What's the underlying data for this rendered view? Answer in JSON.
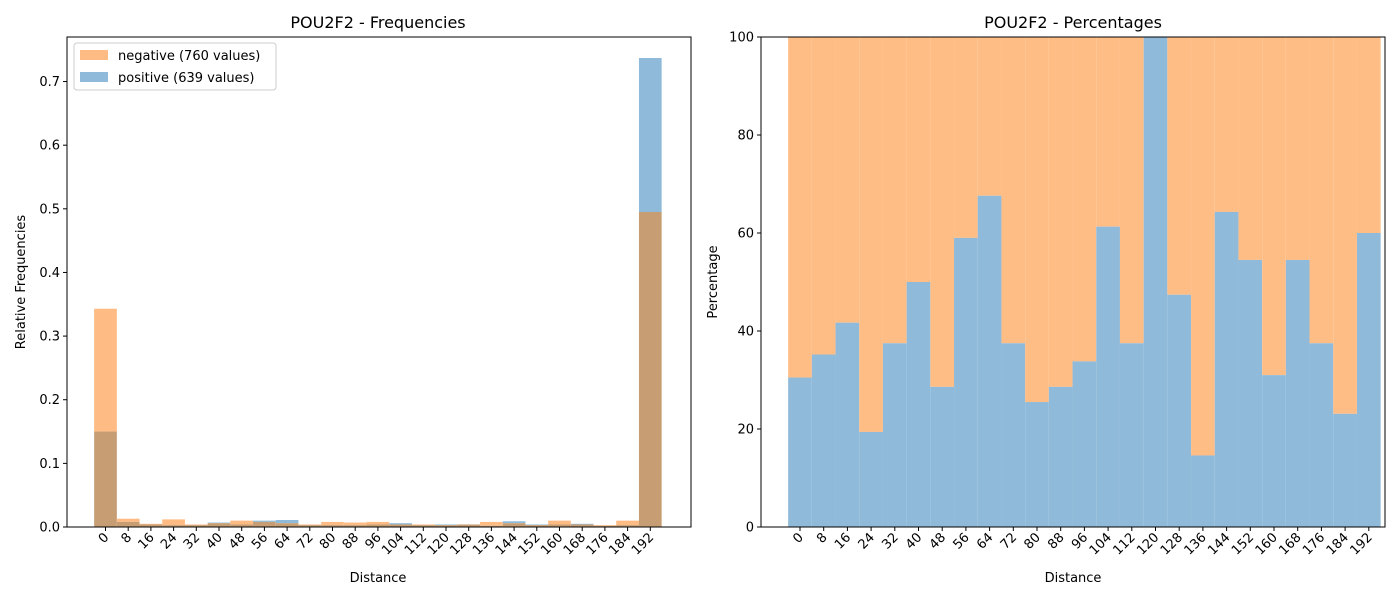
{
  "chart_data": [
    {
      "type": "bar",
      "title": "POU2F2 - Frequencies",
      "xlabel": "Distance",
      "ylabel": "Relative Frequencies",
      "ylim": [
        0,
        0.77
      ],
      "yticks": [
        "0.0",
        "0.1",
        "0.2",
        "0.3",
        "0.4",
        "0.5",
        "0.6",
        "0.7"
      ],
      "categories": [
        "0",
        "8",
        "16",
        "24",
        "32",
        "40",
        "48",
        "56",
        "64",
        "72",
        "80",
        "88",
        "96",
        "104",
        "112",
        "120",
        "128",
        "136",
        "144",
        "152",
        "160",
        "168",
        "176",
        "184",
        "192"
      ],
      "legend_position": "top-left",
      "series": [
        {
          "name": "negative (760 values)",
          "color": "#ffbb84",
          "values": [
            0.343,
            0.013,
            0.005,
            0.012,
            0.004,
            0.006,
            0.01,
            0.008,
            0.006,
            0.004,
            0.008,
            0.007,
            0.008,
            0.004,
            0.004,
            0.003,
            0.004,
            0.008,
            0.006,
            0.003,
            0.01,
            0.004,
            0.003,
            0.01,
            0.495
          ]
        },
        {
          "name": "positive (639 values)",
          "color": "#8fbad9",
          "values": [
            0.15,
            0.008,
            0.004,
            0.003,
            0.003,
            0.007,
            0.004,
            0.01,
            0.011,
            0.003,
            0.003,
            0.003,
            0.004,
            0.006,
            0.003,
            0.004,
            0.004,
            0.002,
            0.009,
            0.004,
            0.004,
            0.005,
            0.002,
            0.003,
            0.737
          ]
        }
      ]
    },
    {
      "type": "bar",
      "stacked": true,
      "title": "POU2F2 - Percentages",
      "xlabel": "Distance",
      "ylabel": "Percentage",
      "ylim": [
        0,
        100
      ],
      "yticks": [
        "0",
        "20",
        "40",
        "60",
        "80",
        "100"
      ],
      "categories": [
        "0",
        "8",
        "16",
        "24",
        "32",
        "40",
        "48",
        "56",
        "64",
        "72",
        "80",
        "88",
        "96",
        "104",
        "112",
        "120",
        "128",
        "136",
        "144",
        "152",
        "160",
        "168",
        "176",
        "184",
        "192"
      ],
      "series": [
        {
          "name": "positive",
          "color": "#8fbad9",
          "values": [
            30.5,
            35.2,
            41.7,
            19.4,
            37.5,
            50.0,
            28.6,
            59.0,
            67.6,
            37.5,
            25.5,
            28.6,
            33.8,
            61.3,
            37.5,
            100,
            47.4,
            14.6,
            64.3,
            54.5,
            31.0,
            54.5,
            37.5,
            23.1,
            60.0
          ]
        },
        {
          "name": "negative",
          "color": "#ffbd86",
          "values": [
            69.5,
            64.8,
            58.3,
            80.6,
            62.5,
            50.0,
            71.4,
            41.0,
            32.4,
            62.5,
            74.5,
            71.4,
            66.2,
            38.7,
            62.5,
            0,
            52.6,
            85.4,
            35.7,
            45.5,
            69.0,
            45.5,
            62.5,
            76.9,
            40.0
          ]
        }
      ]
    }
  ]
}
